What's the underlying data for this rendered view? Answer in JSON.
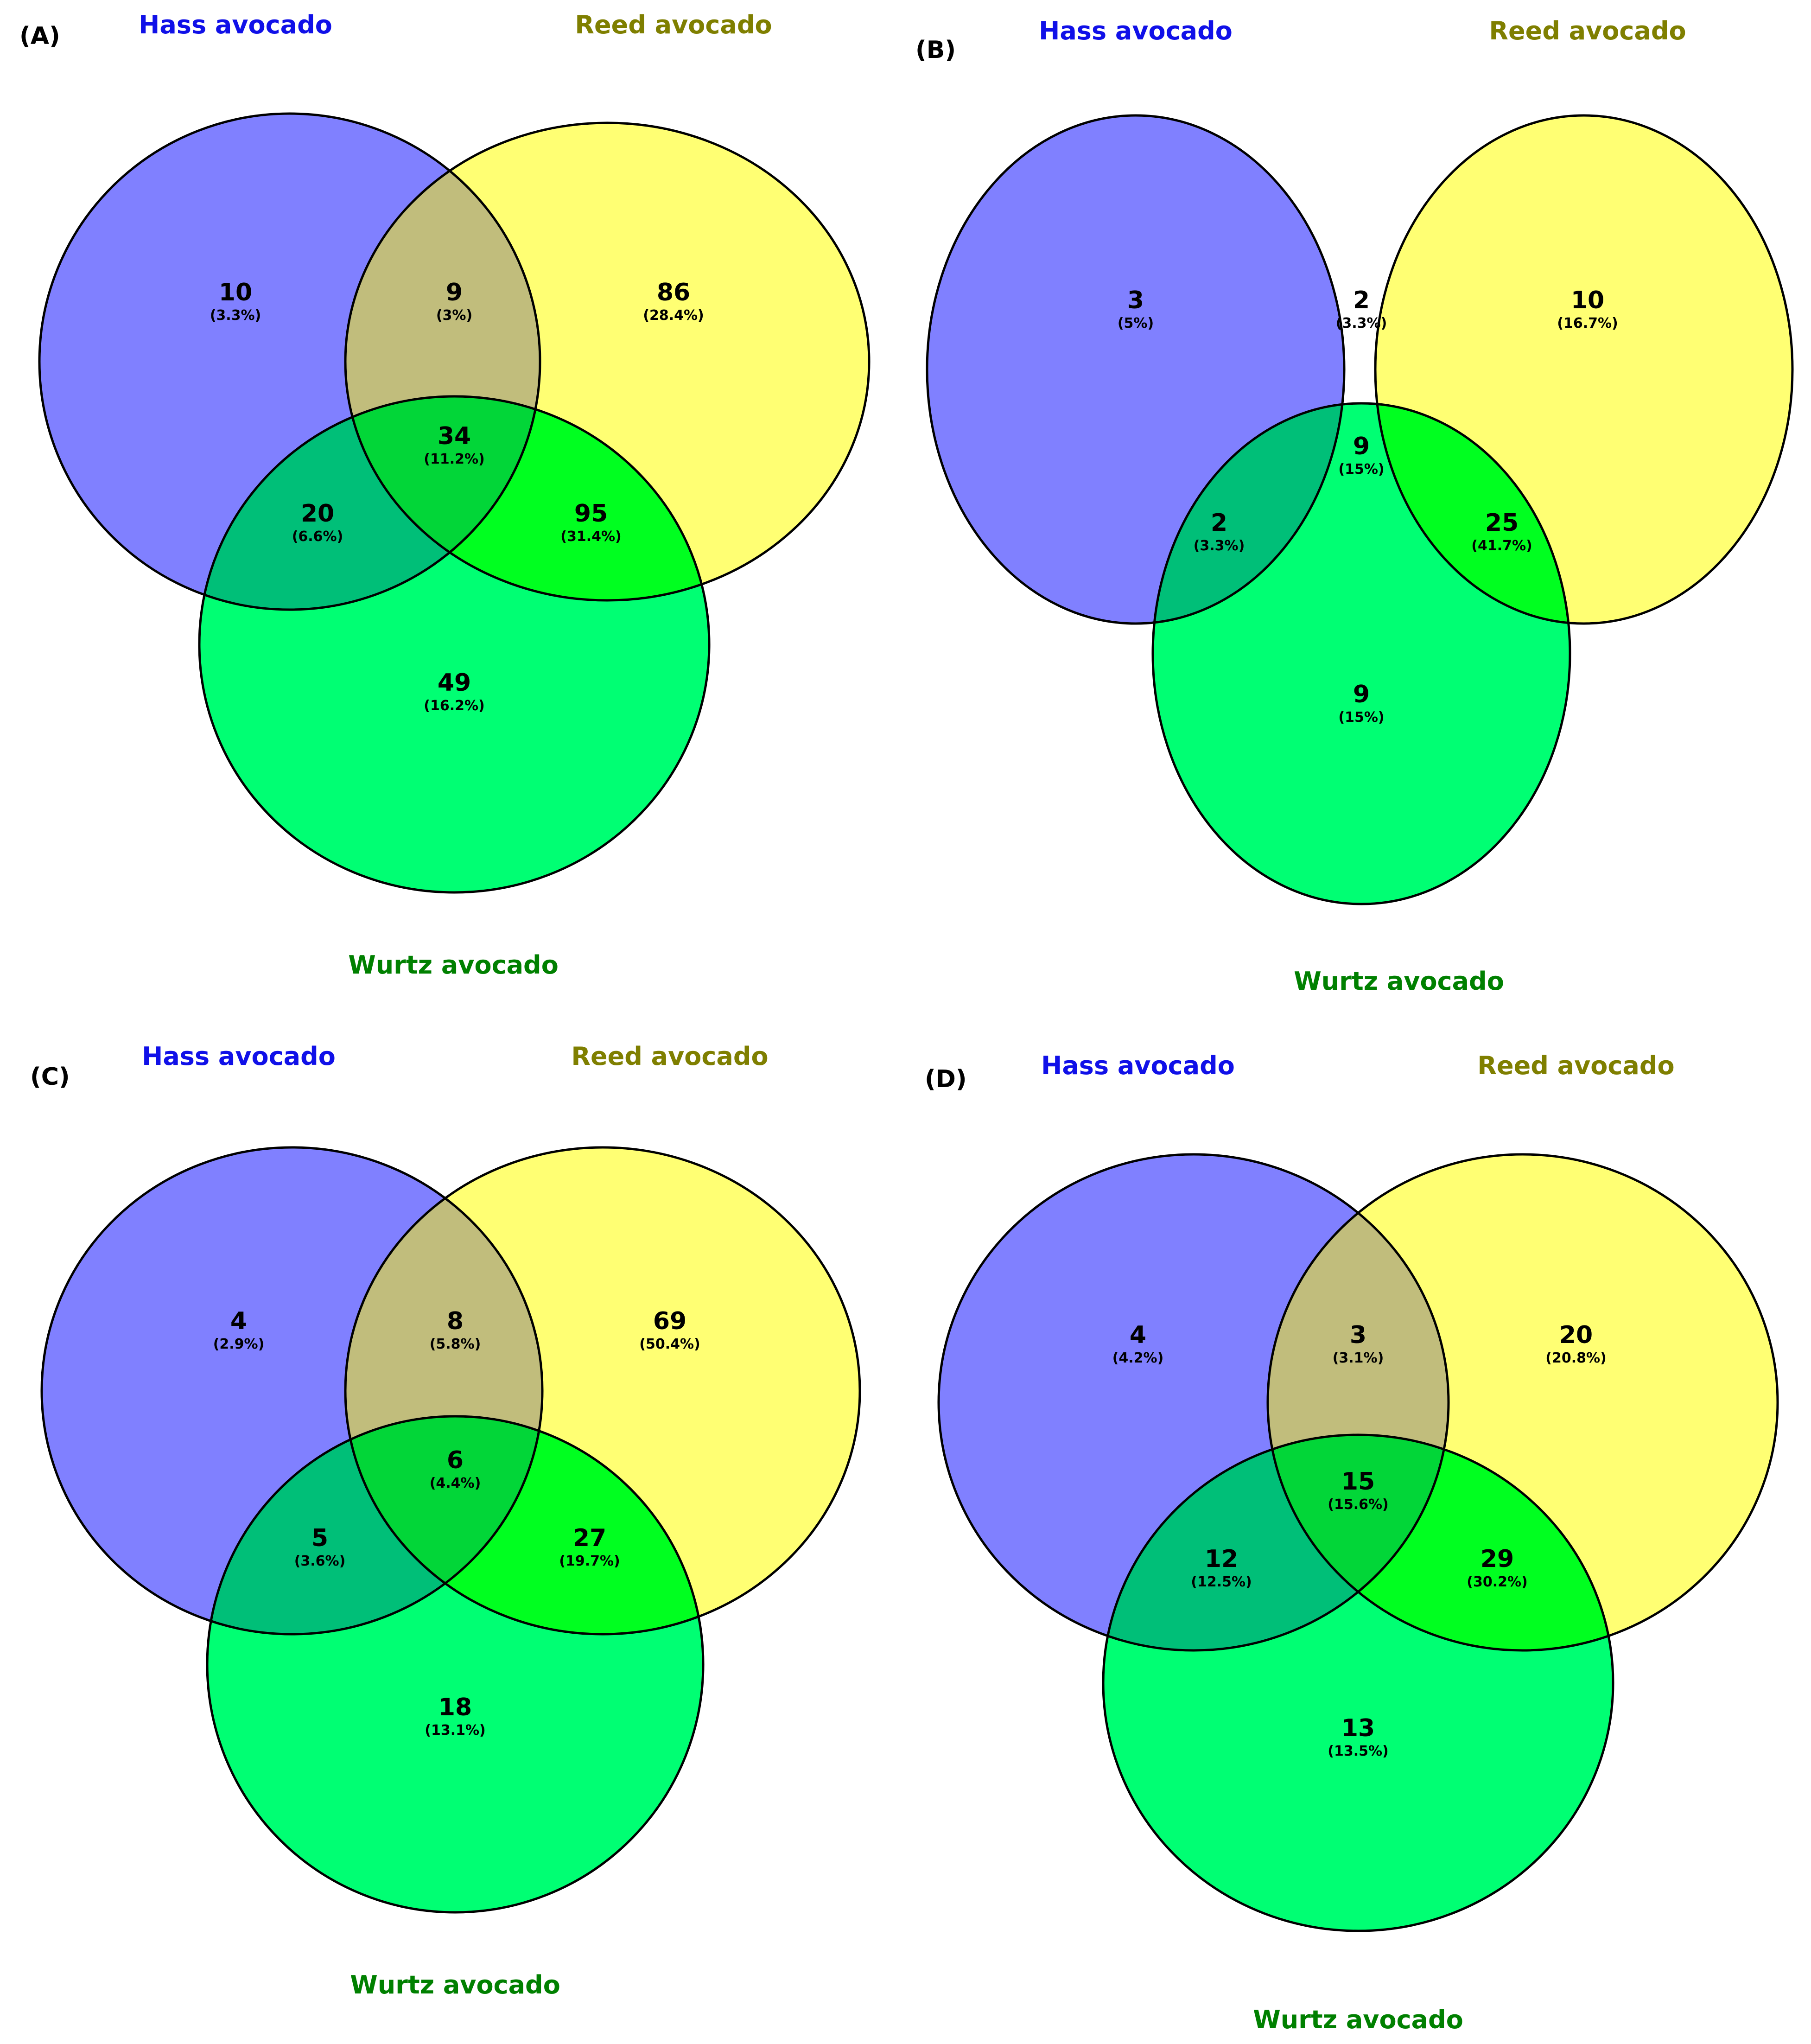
{
  "colors": {
    "hass_fill": "#8080ff",
    "reed_fill": "#ffff73",
    "wurtz_fill": "#00ff73",
    "hass_reed_fill": "#c1bd7c",
    "hass_wurtz_fill": "#00bf78",
    "reed_wurtz_fill": "#00ff20",
    "all_fill": "#02d638",
    "hass_label": "#1010e8",
    "reed_label": "#7f7f00",
    "wurtz_label": "#008000",
    "stroke": "#000000",
    "text": "#000000"
  },
  "panels": [
    {
      "id": "A",
      "tag": "(A)",
      "labels": {
        "hass": "Hass avocado",
        "reed": "Reed avocado",
        "wurtz": "Wurtz avocado"
      },
      "regions": {
        "hass_only": {
          "count": "10",
          "pct": "(3.3%)"
        },
        "hass_reed": {
          "count": "9",
          "pct": "(3%)"
        },
        "reed_only": {
          "count": "86",
          "pct": "(28.4%)"
        },
        "all": {
          "count": "34",
          "pct": "(11.2%)"
        },
        "hass_wurtz": {
          "count": "20",
          "pct": "(6.6%)"
        },
        "reed_wurtz": {
          "count": "95",
          "pct": "(31.4%)"
        },
        "wurtz_only": {
          "count": "49",
          "pct": "(16.2%)"
        }
      }
    },
    {
      "id": "B",
      "tag": "(B)",
      "labels": {
        "hass": "Hass avocado",
        "reed": "Reed avocado",
        "wurtz": "Wurtz avocado"
      },
      "regions": {
        "hass_only": {
          "count": "3",
          "pct": "(5%)"
        },
        "hass_reed": {
          "count": "2",
          "pct": "(3.3%)"
        },
        "reed_only": {
          "count": "10",
          "pct": "(16.7%)"
        },
        "all": {
          "count": "9",
          "pct": "(15%)"
        },
        "hass_wurtz": {
          "count": "2",
          "pct": "(3.3%)"
        },
        "reed_wurtz": {
          "count": "25",
          "pct": "(41.7%)"
        },
        "wurtz_only": {
          "count": "9",
          "pct": "(15%)"
        }
      }
    },
    {
      "id": "C",
      "tag": "(C)",
      "labels": {
        "hass": "Hass avocado",
        "reed": "Reed avocado",
        "wurtz": "Wurtz avocado"
      },
      "regions": {
        "hass_only": {
          "count": "4",
          "pct": "(2.9%)"
        },
        "hass_reed": {
          "count": "8",
          "pct": "(5.8%)"
        },
        "reed_only": {
          "count": "69",
          "pct": "(50.4%)"
        },
        "all": {
          "count": "6",
          "pct": "(4.4%)"
        },
        "hass_wurtz": {
          "count": "5",
          "pct": "(3.6%)"
        },
        "reed_wurtz": {
          "count": "27",
          "pct": "(19.7%)"
        },
        "wurtz_only": {
          "count": "18",
          "pct": "(13.1%)"
        }
      }
    },
    {
      "id": "D",
      "tag": "(D)",
      "labels": {
        "hass": "Hass avocado",
        "reed": "Reed avocado",
        "wurtz": "Wurtz avocado"
      },
      "regions": {
        "hass_only": {
          "count": "4",
          "pct": "(4.2%)"
        },
        "hass_reed": {
          "count": "3",
          "pct": "(3.1%)"
        },
        "reed_only": {
          "count": "20",
          "pct": "(20.8%)"
        },
        "all": {
          "count": "15",
          "pct": "(15.6%)"
        },
        "hass_wurtz": {
          "count": "12",
          "pct": "(12.5%)"
        },
        "reed_wurtz": {
          "count": "29",
          "pct": "(30.2%)"
        },
        "wurtz_only": {
          "count": "13",
          "pct": "(13.5%)"
        }
      }
    }
  ]
}
